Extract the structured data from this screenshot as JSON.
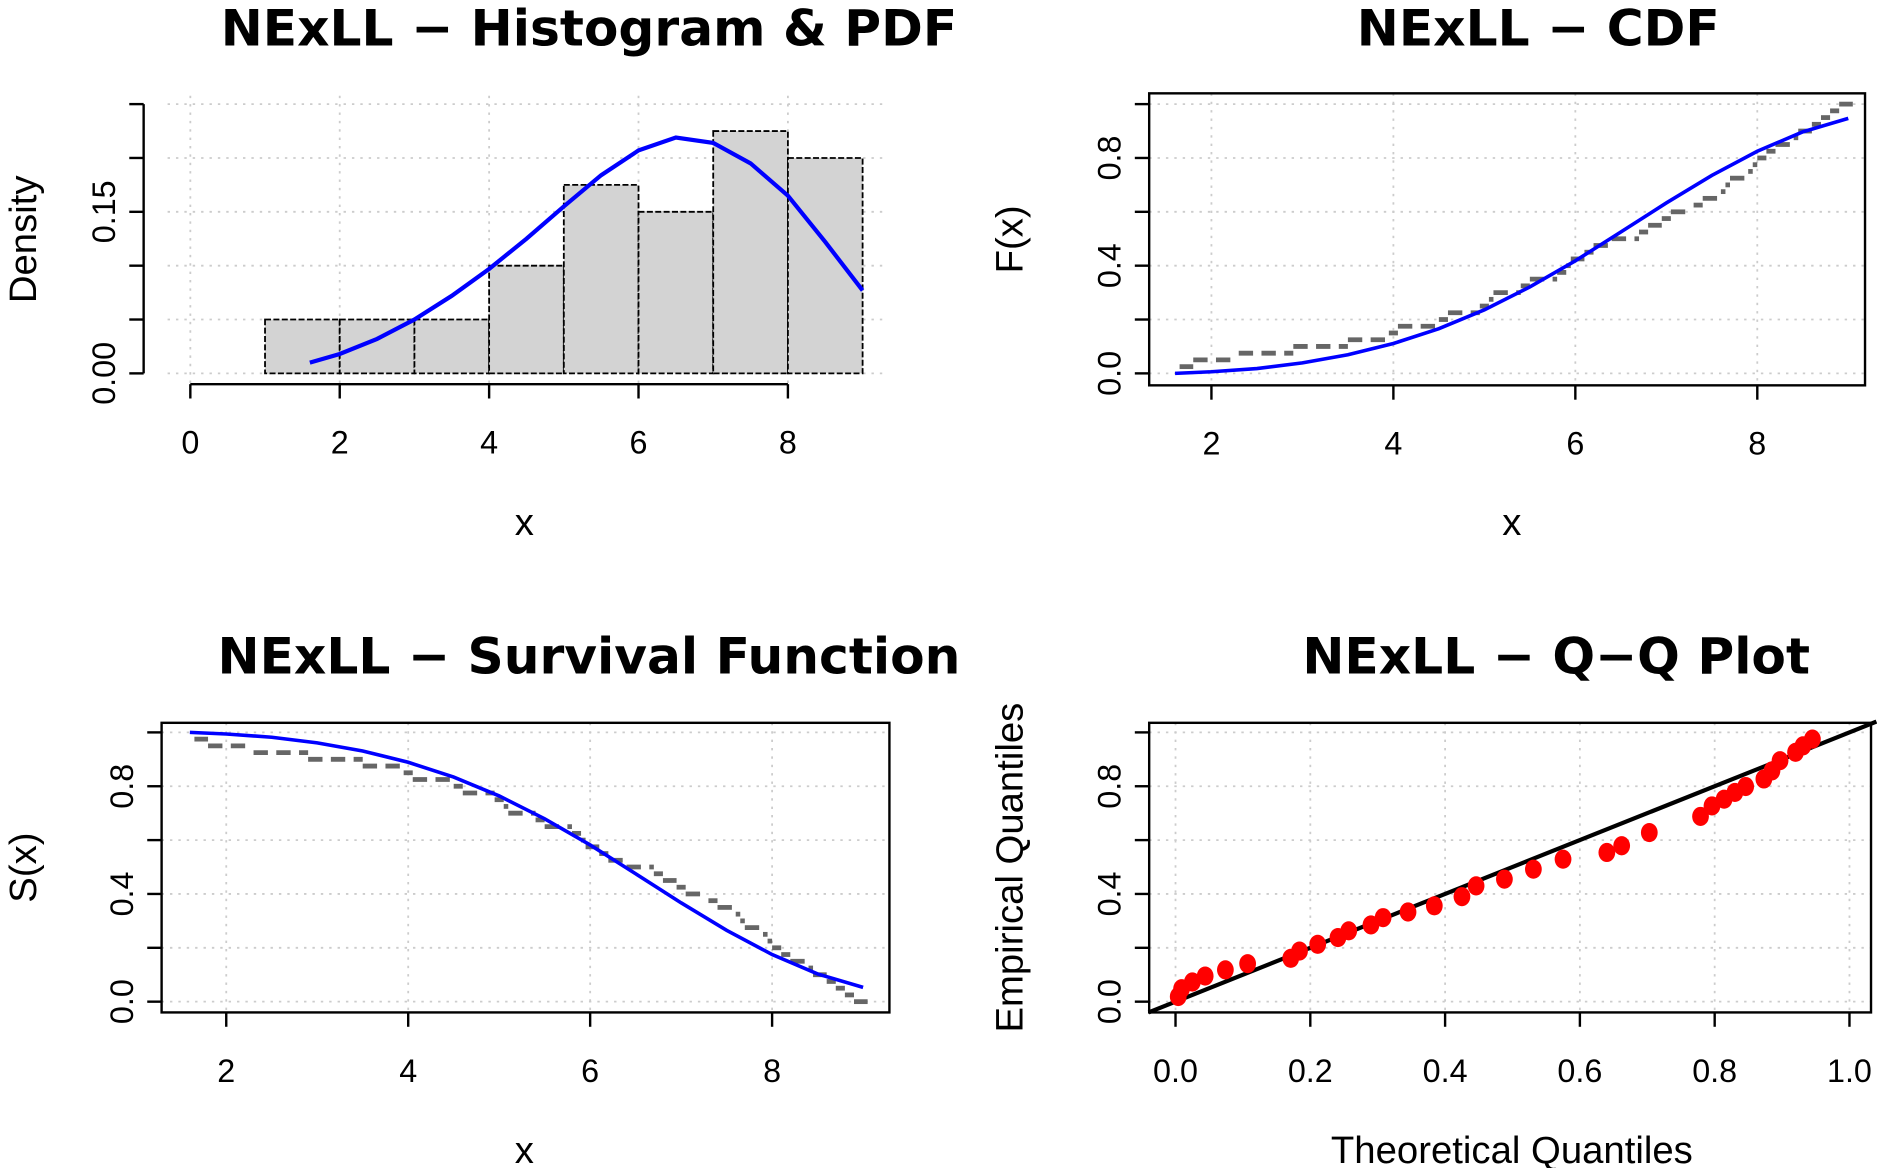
{
  "chart_data": [
    {
      "type": "bar",
      "title": "NExLL − Histogram & PDF",
      "xlabel": "x",
      "ylabel": "Density",
      "xlim": [
        0,
        9
      ],
      "ylim": [
        0,
        0.25
      ],
      "grid": true,
      "x_ticks": [
        0,
        2,
        4,
        6,
        8
      ],
      "x_tick_labels": [
        "0",
        "2",
        "4",
        "6",
        "8"
      ],
      "y_ticks": [
        0,
        0.05,
        0.1,
        0.15,
        0.2,
        0.25
      ],
      "y_tick_labels": [
        {
          "v": 0,
          "t": "0.00"
        },
        {
          "v": 0.15,
          "t": "0.15"
        }
      ],
      "bins": [
        [
          1,
          2
        ],
        [
          2,
          3
        ],
        [
          3,
          4
        ],
        [
          4,
          5
        ],
        [
          5,
          6
        ],
        [
          6,
          7
        ],
        [
          7,
          8
        ],
        [
          8,
          9
        ]
      ],
      "values": [
        0.05,
        0.05,
        0.05,
        0.1,
        0.175,
        0.15,
        0.225,
        0.2
      ],
      "bar_color": "#d3d3d3",
      "pdf_color": "#0000ff",
      "pdf": {
        "x": [
          1.6,
          2,
          2.5,
          3,
          3.5,
          4,
          4.5,
          5,
          5.5,
          6,
          6.5,
          7,
          7.5,
          8,
          8.5,
          9
        ],
        "y": [
          0.01,
          0.018,
          0.032,
          0.05,
          0.072,
          0.097,
          0.125,
          0.155,
          0.184,
          0.207,
          0.219,
          0.214,
          0.195,
          0.165,
          0.122,
          0.077
        ]
      }
    },
    {
      "type": "line",
      "title": "NExLL − CDF",
      "xlabel": "x",
      "ylabel": "F(x)",
      "xlim": [
        1.4,
        9.3
      ],
      "ylim": [
        -0.04,
        1.04
      ],
      "grid": true,
      "x_ticks": [
        2,
        4,
        6,
        8
      ],
      "x_tick_labels": [
        "2",
        "4",
        "6",
        "8"
      ],
      "y_ticks": [
        0,
        0.2,
        0.4,
        0.6,
        0.8,
        1.0
      ],
      "y_tick_labels": [
        {
          "v": 0,
          "t": "0.0"
        },
        {
          "v": 0.4,
          "t": "0.4"
        },
        {
          "v": 0.8,
          "t": "0.8"
        }
      ],
      "model": {
        "x": [
          1.6,
          2,
          2.5,
          3,
          3.5,
          4,
          4.5,
          5,
          5.5,
          6,
          6.5,
          7,
          7.5,
          8,
          8.5,
          9
        ],
        "y": [
          0.0,
          0.006,
          0.018,
          0.039,
          0.069,
          0.111,
          0.166,
          0.236,
          0.321,
          0.418,
          0.525,
          0.633,
          0.735,
          0.825,
          0.897,
          0.947
        ],
        "color": "#0000ff"
      },
      "empirical_color": "#666666"
    },
    {
      "type": "line",
      "title": "NExLL − Survival Function",
      "xlabel": "x",
      "ylabel": "S(x)",
      "xlim": [
        1.3,
        9.3
      ],
      "ylim": [
        -0.04,
        1.04
      ],
      "grid": true,
      "x_ticks": [
        2,
        4,
        6,
        8
      ],
      "x_tick_labels": [
        "2",
        "4",
        "6",
        "8"
      ],
      "y_ticks": [
        0,
        0.2,
        0.4,
        0.6,
        0.8,
        1.0
      ],
      "y_tick_labels": [
        {
          "v": 0,
          "t": "0.0"
        },
        {
          "v": 0.4,
          "t": "0.4"
        },
        {
          "v": 0.8,
          "t": "0.8"
        }
      ],
      "model": {
        "x": [
          1.6,
          2,
          2.5,
          3,
          3.5,
          4,
          4.5,
          5,
          5.5,
          6,
          6.5,
          7,
          7.5,
          8,
          8.5,
          9
        ],
        "y": [
          1.0,
          0.994,
          0.982,
          0.961,
          0.931,
          0.889,
          0.834,
          0.764,
          0.679,
          0.582,
          0.475,
          0.367,
          0.265,
          0.175,
          0.103,
          0.053
        ],
        "color": "#0000ff"
      },
      "empirical_color": "#666666"
    },
    {
      "type": "scatter",
      "title": "NExLL − Q−Q Plot",
      "xlabel": "Theoretical Quantiles",
      "ylabel": "Empirical Quantiles",
      "xlim": [
        -0.04,
        1.04
      ],
      "ylim": [
        -0.04,
        1.04
      ],
      "grid": true,
      "x_ticks": [
        0,
        0.2,
        0.4,
        0.6,
        0.8,
        1.0
      ],
      "x_tick_labels": [
        "0.0",
        "0.2",
        "0.4",
        "0.6",
        "0.8",
        "1.0"
      ],
      "y_ticks": [
        0,
        0.2,
        0.4,
        0.6,
        0.8,
        1.0
      ],
      "y_tick_labels": [
        {
          "v": 0,
          "t": "0.0"
        },
        {
          "v": 0.4,
          "t": "0.4"
        },
        {
          "v": 0.8,
          "t": "0.8"
        }
      ],
      "point_color": "#ff0000",
      "reference_line": {
        "slope": 1,
        "intercept": 0,
        "color": "#000000"
      },
      "x": [
        0.004,
        0.009,
        0.025,
        0.044,
        0.074,
        0.107,
        0.171,
        0.184,
        0.211,
        0.241,
        0.257,
        0.29,
        0.308,
        0.345,
        0.384,
        0.425,
        0.446,
        0.488,
        0.531,
        0.575,
        0.64,
        0.662,
        0.703,
        0.779,
        0.796,
        0.814,
        0.83,
        0.846,
        0.873,
        0.885,
        0.897,
        0.92,
        0.931,
        0.945
      ],
      "y": [
        0.019,
        0.048,
        0.073,
        0.095,
        0.118,
        0.141,
        0.161,
        0.188,
        0.213,
        0.238,
        0.263,
        0.285,
        0.312,
        0.333,
        0.356,
        0.39,
        0.43,
        0.455,
        0.492,
        0.529,
        0.554,
        0.579,
        0.628,
        0.688,
        0.727,
        0.752,
        0.777,
        0.799,
        0.827,
        0.857,
        0.895,
        0.926,
        0.95,
        0.975
      ]
    }
  ],
  "sample": [
    1.65,
    1.8,
    2.3,
    2.9,
    3.5,
    3.95,
    4.05,
    4.5,
    4.6,
    4.95,
    5.05,
    5.1,
    5.4,
    5.5,
    5.8,
    5.9,
    5.95,
    6.1,
    6.2,
    6.4,
    6.7,
    6.8,
    6.95,
    7.05,
    7.3,
    7.4,
    7.6,
    7.65,
    7.7,
    7.9,
    7.95,
    8.0,
    8.1,
    8.2,
    8.4,
    8.45,
    8.6,
    8.7,
    8.8,
    8.9
  ]
}
